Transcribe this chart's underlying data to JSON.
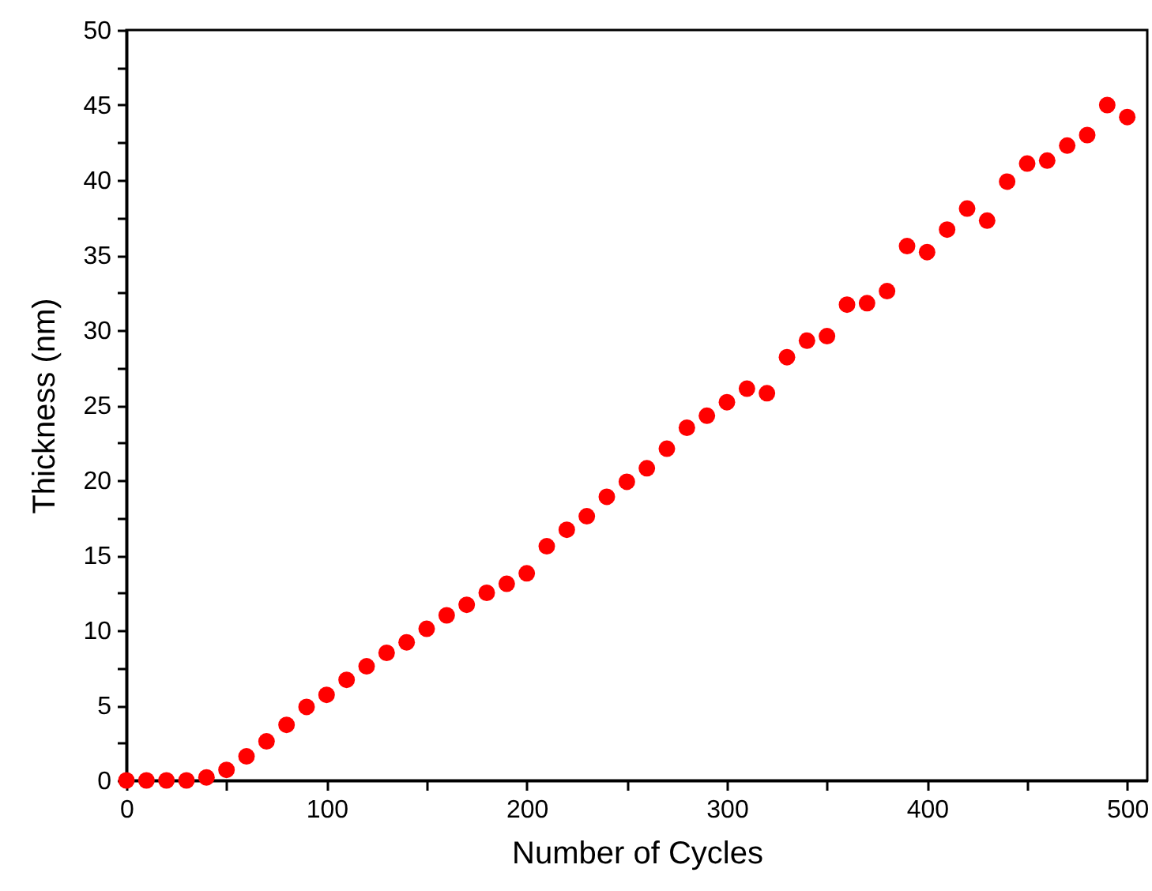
{
  "chart_data": {
    "type": "scatter",
    "xlabel": "Number of Cycles",
    "ylabel": "Thickness (nm)",
    "x": [
      0,
      10,
      20,
      30,
      40,
      50,
      60,
      70,
      80,
      90,
      100,
      110,
      120,
      130,
      140,
      150,
      160,
      170,
      180,
      190,
      200,
      210,
      220,
      230,
      240,
      250,
      260,
      270,
      280,
      290,
      300,
      310,
      320,
      330,
      340,
      350,
      360,
      370,
      380,
      390,
      400,
      410,
      420,
      430,
      440,
      450,
      460,
      470,
      480,
      490,
      500
    ],
    "series": [
      {
        "color": "#ff0000",
        "values": [
          0,
          0,
          0,
          0,
          0.2,
          0.7,
          1.6,
          2.6,
          3.7,
          4.9,
          5.7,
          6.7,
          7.6,
          8.5,
          9.2,
          10.1,
          11,
          11.7,
          12.5,
          13.1,
          13.8,
          15.6,
          16.7,
          17.6,
          18.9,
          19.9,
          20.8,
          22.1,
          23.5,
          24.3,
          25.2,
          26.1,
          25.8,
          28.2,
          29.3,
          29.6,
          31.7,
          31.8,
          32.6,
          35.6,
          35.2,
          36.7,
          38.1,
          37.3,
          39.9,
          41.1,
          41.3,
          42.3,
          43.0,
          45.0,
          44.2
        ]
      }
    ],
    "xlim": [
      0,
      510
    ],
    "ylim": [
      0,
      50
    ],
    "xticks": [
      0,
      {
        "value": 50,
        "label": null
      },
      100,
      {
        "value": 150,
        "label": null
      },
      200,
      {
        "value": 250,
        "label": null
      },
      300,
      {
        "value": 350,
        "label": null
      },
      400,
      {
        "value": 450,
        "label": null
      },
      500
    ],
    "yticks": [
      0,
      {
        "value": 2.5,
        "label": null
      },
      5,
      {
        "value": 7.5,
        "label": null
      },
      10,
      {
        "value": 12.5,
        "label": null
      },
      15,
      {
        "value": 17.5,
        "label": null
      },
      20,
      {
        "value": 22.5,
        "label": null
      },
      25,
      {
        "value": 27.5,
        "label": null
      },
      30,
      {
        "value": 32.5,
        "label": null
      },
      35,
      {
        "value": 37.5,
        "label": null
      },
      40,
      {
        "value": 42.5,
        "label": null
      },
      45,
      {
        "value": 47.5,
        "label": null
      },
      50
    ],
    "marker": "circle",
    "grid": false
  }
}
